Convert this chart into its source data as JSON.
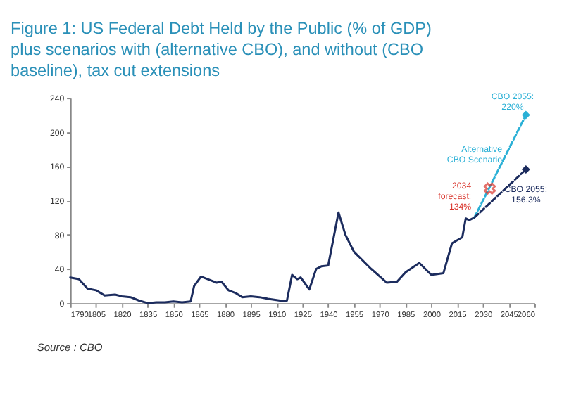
{
  "chart_data": {
    "type": "line",
    "title": "Figure 1: US Federal Debt Held by the Public (% of GDP) plus scenarios with (alternative CBO), and without (CBO baseline), tax cut extensions",
    "xlim": [
      1790,
      2060
    ],
    "xticks": [
      1790,
      1805,
      1820,
      1835,
      1850,
      1865,
      1880,
      1895,
      1910,
      1925,
      1940,
      1955,
      1970,
      1985,
      2000,
      2015,
      2030,
      2045,
      2060
    ],
    "ylim": [
      0,
      240
    ],
    "yticks": [
      0,
      40,
      80,
      120,
      160,
      200,
      240
    ],
    "grid": false,
    "series": [
      {
        "color": "#1c2c5e",
        "line_style": "solid",
        "marker": "none",
        "x": [
          1790,
          1795,
          1800,
          1805,
          1810,
          1816,
          1820,
          1825,
          1830,
          1835,
          1840,
          1845,
          1850,
          1855,
          1860,
          1862,
          1866,
          1870,
          1875,
          1878,
          1882,
          1886,
          1890,
          1895,
          1900,
          1905,
          1912,
          1916,
          1919,
          1922,
          1924,
          1929,
          1933,
          1936,
          1940,
          1946,
          1950,
          1955,
          1965,
          1974,
          1980,
          1985,
          1993,
          2000,
          2007,
          2012,
          2018,
          2020,
          2022,
          2025
        ],
        "values": [
          30,
          28,
          17,
          15,
          9,
          10,
          8,
          7,
          3,
          0,
          1,
          1,
          2,
          1,
          2,
          20,
          31,
          28,
          24,
          25,
          15,
          12,
          7,
          8,
          7,
          5,
          3,
          3,
          33,
          28,
          30,
          16,
          40,
          43,
          44,
          106,
          80,
          60,
          40,
          24,
          25,
          36,
          47,
          33,
          35,
          70,
          77,
          99,
          97,
          100
        ]
      },
      {
        "color": "#2ab0d6",
        "line_style": "dashed",
        "marker": "none",
        "x": [
          2025,
          2055
        ],
        "values": [
          100,
          220
        ]
      },
      {
        "color": "#1c2c5e",
        "line_style": "dashed",
        "marker": "none",
        "x": [
          2025,
          2055
        ],
        "values": [
          100,
          156.3
        ]
      },
      {
        "type": "scatter",
        "color": "#2ab0d6",
        "marker": "diamond",
        "x": [
          2055
        ],
        "values": [
          220
        ]
      },
      {
        "type": "scatter",
        "color": "#1c2c5e",
        "marker": "diamond",
        "x": [
          2055
        ],
        "values": [
          156.3
        ]
      },
      {
        "type": "scatter",
        "color": "#d9342b",
        "marker": "cross",
        "x": [
          2034
        ],
        "values": [
          134
        ]
      }
    ],
    "annotations": [
      {
        "text": "CBO 2055: 220%",
        "x": 2055,
        "y": 220
      },
      {
        "text": "Alternative CBO Scenario",
        "x": 2045,
        "y": 180
      },
      {
        "text": "2034 forecast: 134%",
        "x": 2034,
        "y": 134
      },
      {
        "text": "CBO 2055: 156.3%",
        "x": 2055,
        "y": 156.3
      },
      "Source : CBO"
    ]
  }
}
